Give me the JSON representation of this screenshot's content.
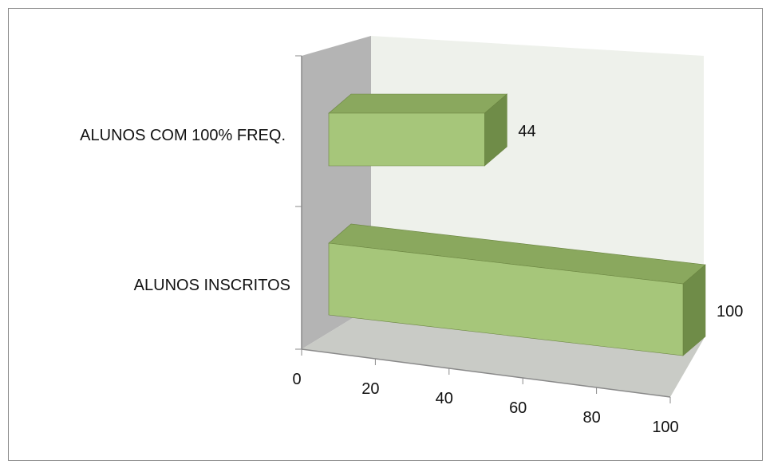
{
  "chart_data": {
    "type": "bar",
    "orientation": "horizontal",
    "style": "3d",
    "title": "",
    "xlabel": "",
    "ylabel": "",
    "categories": [
      "ALUNOS COM 100% FREQ.",
      "ALUNOS INSCRITOS"
    ],
    "values": [
      44,
      100
    ],
    "data_labels": [
      "44",
      "100"
    ],
    "xlim": [
      0,
      100
    ],
    "xticks": [
      "0",
      "20",
      "40",
      "60",
      "80",
      "100"
    ],
    "legend": "none",
    "grid": false,
    "colors": {
      "bar_front": "#a6c67a",
      "bar_top": "#8aa85e",
      "bar_side": "#6f8c48",
      "back_wall": "#eef1eb",
      "side_wall": "#b4b4b4",
      "floor": "#c9cbc6"
    }
  }
}
